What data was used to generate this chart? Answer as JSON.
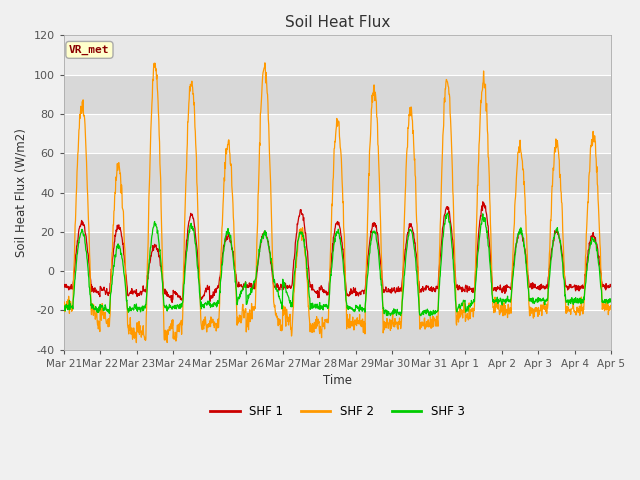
{
  "title": "Soil Heat Flux",
  "ylabel": "Soil Heat Flux (W/m2)",
  "xlabel": "Time",
  "ylim": [
    -40,
    120
  ],
  "figsize": [
    6.4,
    4.8
  ],
  "dpi": 100,
  "outer_bg": "#f0f0f0",
  "plot_bg_light": "#e8e8e8",
  "plot_bg_dark": "#d8d8d8",
  "colors": {
    "SHF 1": "#cc0000",
    "SHF 2": "#ff9900",
    "SHF 3": "#00cc00"
  },
  "annotation_text": "VR_met",
  "annotation_bg": "#ffffcc",
  "annotation_border": "#aaaaaa",
  "xtick_labels": [
    "Mar 21",
    "Mar 22",
    "Mar 23",
    "Mar 24",
    "Mar 25",
    "Mar 26",
    "Mar 27",
    "Mar 28",
    "Mar 29",
    "Mar 30",
    "Mar 31",
    "Apr 1",
    "Apr 2",
    "Apr 3",
    "Apr 4",
    "Apr 5"
  ],
  "ytick_labels": [
    -40,
    -20,
    0,
    20,
    40,
    60,
    80,
    100,
    120
  ],
  "n_days": 15,
  "points_per_day": 96,
  "shf1_day_peaks": [
    25,
    23,
    13,
    29,
    18,
    20,
    30,
    25,
    24,
    23,
    32,
    34,
    20,
    20,
    18
  ],
  "shf2_day_peaks": [
    84,
    54,
    105,
    97,
    65,
    104,
    21,
    76,
    93,
    82,
    98,
    97,
    63,
    64,
    68
  ],
  "shf3_day_peaks": [
    20,
    13,
    24,
    23,
    20,
    19,
    20,
    20,
    20,
    21,
    29,
    27,
    21,
    21,
    17
  ],
  "shf1_night_troughs": [
    -8,
    -12,
    -10,
    -15,
    -7,
    -8,
    -8,
    -12,
    -10,
    -10,
    -8,
    -10,
    -8,
    -8,
    -8
  ],
  "shf2_night_troughs": [
    -18,
    -28,
    -35,
    -26,
    -27,
    -18,
    -30,
    -25,
    -28,
    -27,
    -25,
    -18,
    -20,
    -20,
    -18
  ],
  "shf3_night_troughs": [
    -18,
    -20,
    -18,
    -18,
    -16,
    -5,
    -18,
    -18,
    -20,
    -22,
    -20,
    -15,
    -15,
    -15,
    -15
  ]
}
